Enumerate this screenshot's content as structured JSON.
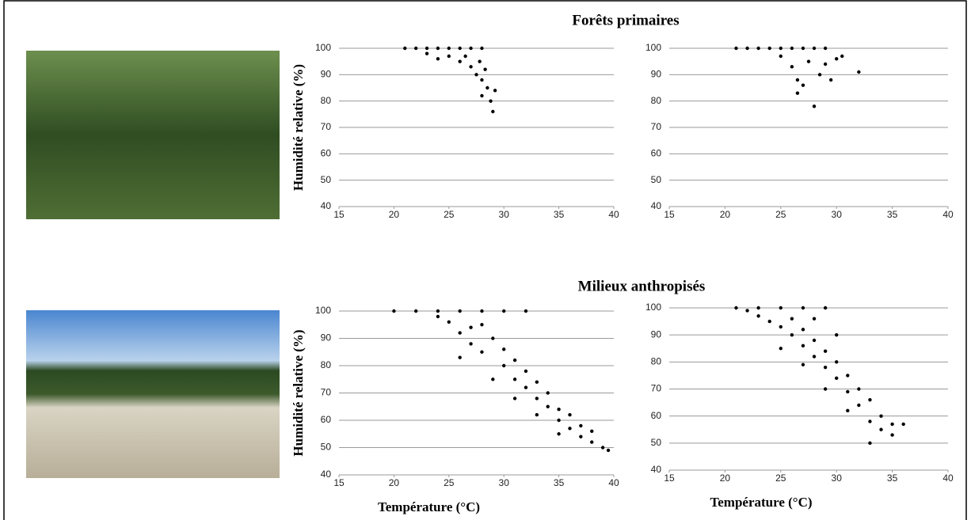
{
  "chart_data": [
    {
      "type": "scatter",
      "title": "Forêts primaires",
      "ylabel": "Humidité relative (%)",
      "color": "#000000",
      "grid": true,
      "xlim": [
        15,
        40
      ],
      "ylim": [
        40,
        100
      ],
      "xticks": [
        15,
        20,
        25,
        30,
        35,
        40
      ],
      "yticks": [
        40,
        50,
        60,
        70,
        80,
        90,
        100
      ],
      "x": [
        21,
        22,
        23,
        24,
        25,
        26,
        27,
        28,
        23,
        24,
        25,
        26,
        27,
        27.5,
        28,
        28.5,
        28,
        28.8,
        29,
        29.2,
        26.5,
        27.8,
        28.3
      ],
      "y": [
        100,
        100,
        100,
        100,
        100,
        100,
        100,
        100,
        98,
        96,
        97,
        95,
        93,
        90,
        88,
        85,
        82,
        80,
        76,
        84,
        97,
        95,
        92
      ]
    },
    {
      "type": "scatter",
      "color": "#000000",
      "grid": true,
      "xlim": [
        15,
        40
      ],
      "ylim": [
        40,
        100
      ],
      "xticks": [
        15,
        20,
        25,
        30,
        35,
        40
      ],
      "yticks": [
        40,
        50,
        60,
        70,
        80,
        90,
        100
      ],
      "x": [
        21,
        22,
        23,
        24,
        25,
        26,
        27,
        28,
        29,
        25,
        26,
        26.5,
        26.5,
        27,
        28,
        28.5,
        29,
        30,
        30.5,
        32,
        27.5,
        29.5
      ],
      "y": [
        100,
        100,
        100,
        100,
        100,
        100,
        100,
        100,
        100,
        97,
        93,
        88,
        83,
        86,
        78,
        90,
        94,
        96,
        97,
        91,
        95,
        88
      ]
    },
    {
      "type": "scatter",
      "title": "Milieux anthropisés",
      "ylabel": "Humidité relative (%)",
      "xlabel": "Température (°C)",
      "color": "#000000",
      "grid": true,
      "xlim": [
        15,
        40
      ],
      "ylim": [
        40,
        100
      ],
      "xticks": [
        15,
        20,
        25,
        30,
        35,
        40
      ],
      "yticks": [
        40,
        50,
        60,
        70,
        80,
        90,
        100
      ],
      "x": [
        20,
        22,
        24,
        26,
        28,
        30,
        32,
        24,
        25,
        26,
        27,
        28,
        28,
        29,
        30,
        30,
        31,
        31,
        32,
        32,
        33,
        33,
        34,
        34,
        35,
        35,
        36,
        36,
        37,
        37,
        38,
        38,
        39,
        39.5,
        29,
        31,
        33,
        35,
        27,
        26
      ],
      "y": [
        100,
        100,
        100,
        100,
        100,
        100,
        100,
        98,
        96,
        92,
        88,
        85,
        95,
        90,
        86,
        80,
        82,
        75,
        78,
        72,
        74,
        68,
        70,
        65,
        64,
        60,
        62,
        57,
        58,
        54,
        56,
        52,
        50,
        49,
        75,
        68,
        62,
        55,
        94,
        83
      ]
    },
    {
      "type": "scatter",
      "xlabel": "Température (°C)",
      "color": "#000000",
      "grid": true,
      "xlim": [
        15,
        40
      ],
      "ylim": [
        40,
        100
      ],
      "xticks": [
        15,
        20,
        25,
        30,
        35,
        40
      ],
      "yticks": [
        40,
        50,
        60,
        70,
        80,
        90,
        100
      ],
      "x": [
        21,
        23,
        25,
        27,
        29,
        22,
        23,
        24,
        25,
        26,
        26,
        27,
        27,
        28,
        28,
        29,
        29,
        30,
        30,
        31,
        31,
        32,
        32,
        33,
        33,
        33,
        34,
        34,
        35,
        35,
        36,
        25,
        27,
        29,
        31,
        28,
        30
      ],
      "y": [
        100,
        100,
        100,
        100,
        100,
        99,
        97,
        95,
        93,
        90,
        96,
        92,
        86,
        88,
        82,
        84,
        78,
        80,
        74,
        75,
        69,
        70,
        64,
        66,
        58,
        50,
        60,
        55,
        57,
        53,
        57,
        85,
        79,
        70,
        62,
        96,
        90
      ]
    }
  ]
}
